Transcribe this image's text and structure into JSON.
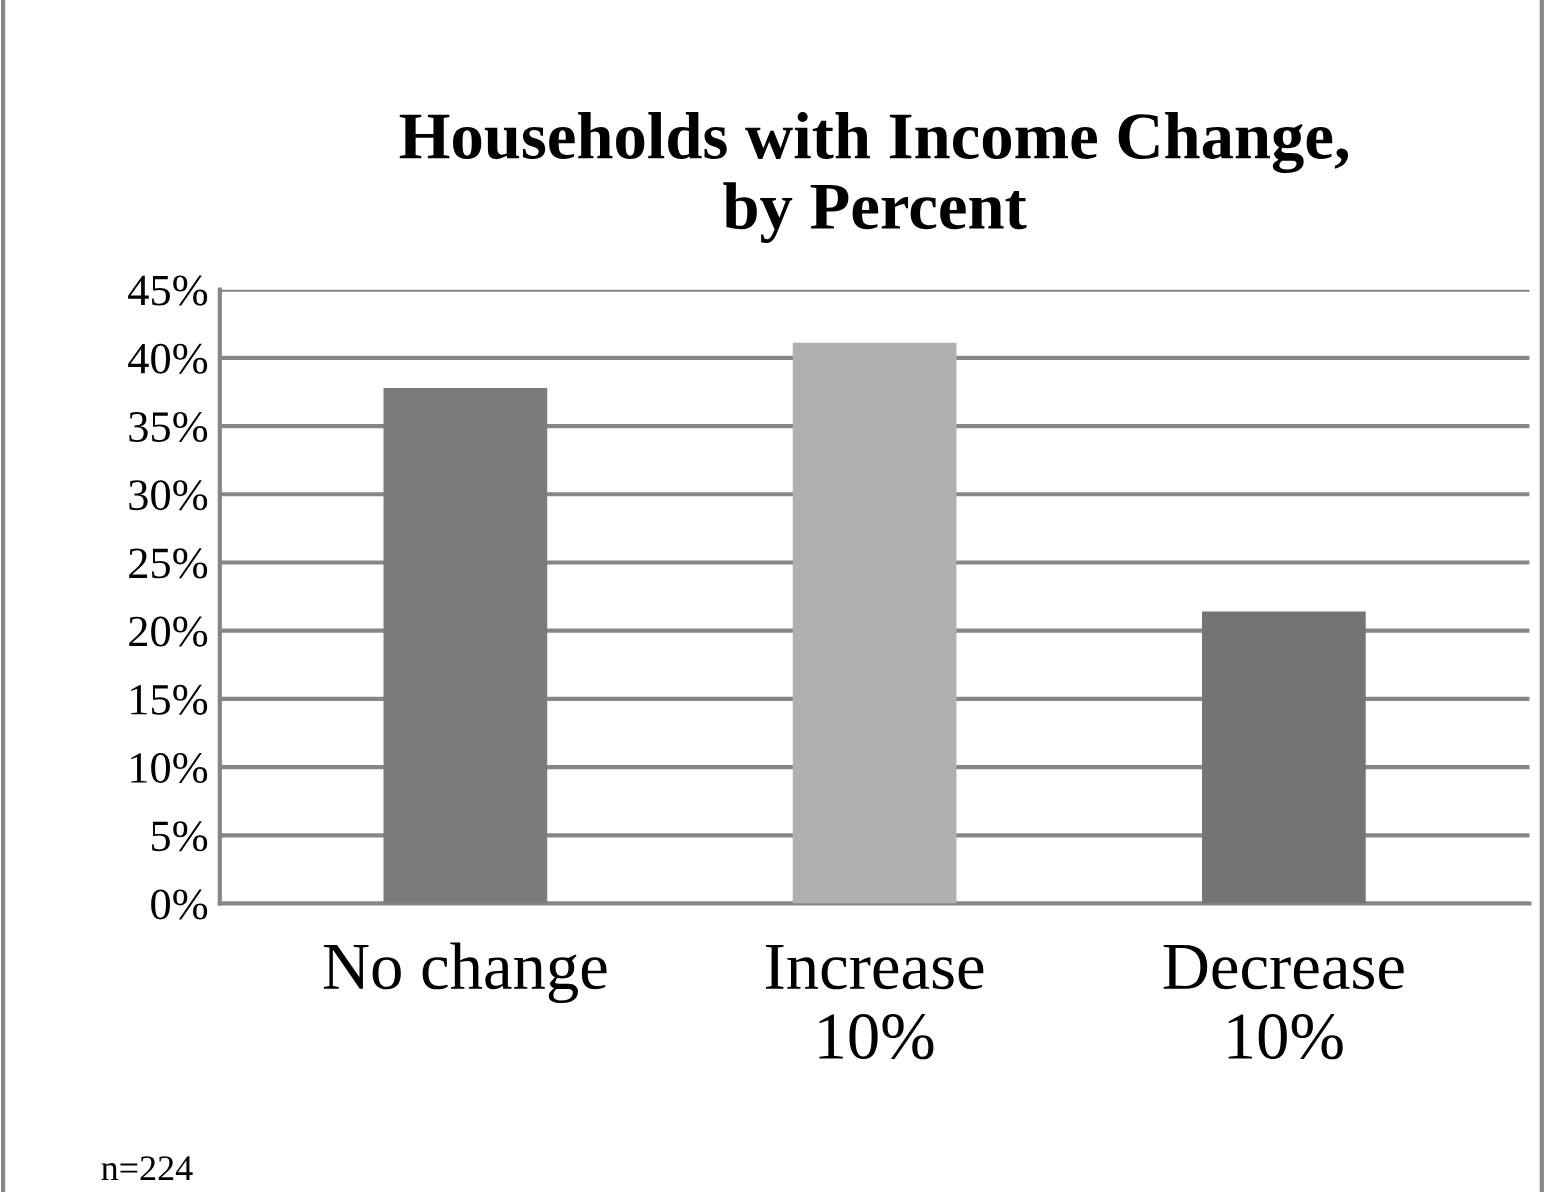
{
  "chart_data": {
    "type": "bar",
    "title": "Households with Income Change,\nby Percent",
    "categories": [
      "No change",
      "Increase\n10%",
      "Decrease\n10%"
    ],
    "values": [
      37.8,
      41.1,
      21.4
    ],
    "colors": [
      "#7b7b7b",
      "#b0b0b0",
      "#747474"
    ],
    "ylim": [
      0,
      45
    ],
    "yticks": [
      {
        "value": 0,
        "label": "0%"
      },
      {
        "value": 5,
        "label": "5%"
      },
      {
        "value": 10,
        "label": "10%"
      },
      {
        "value": 15,
        "label": "15%"
      },
      {
        "value": 20,
        "label": "20%"
      },
      {
        "value": 25,
        "label": "25%"
      },
      {
        "value": 30,
        "label": "30%"
      },
      {
        "value": 35,
        "label": "35%"
      },
      {
        "value": 40,
        "label": "40%"
      },
      {
        "value": 45,
        "label": "45%"
      }
    ],
    "grid": "y",
    "annotations": [
      "n=224"
    ]
  }
}
